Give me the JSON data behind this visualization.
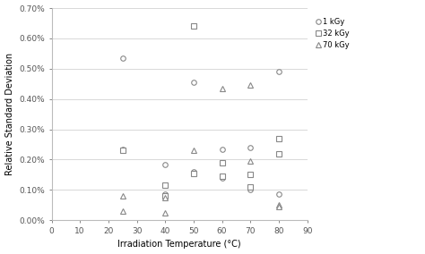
{
  "title": "",
  "xlabel": "Irradiation Temperature (°C)",
  "ylabel": "Relative Standard Deviation",
  "xlim": [
    0,
    90
  ],
  "ylim": [
    0.0,
    0.007
  ],
  "xticks": [
    0,
    10,
    20,
    30,
    40,
    50,
    60,
    70,
    80,
    90
  ],
  "yticks": [
    0.0,
    0.001,
    0.002,
    0.003,
    0.004,
    0.005,
    0.006,
    0.007
  ],
  "ytick_labels": [
    "0.00%",
    "0.10%",
    "0.20%",
    "0.30%",
    "0.40%",
    "0.50%",
    "0.60%",
    "0.70%"
  ],
  "series_1kGy": {
    "label": "1 kGy",
    "marker": "o",
    "x": [
      25,
      25,
      40,
      40,
      50,
      50,
      60,
      60,
      70,
      70,
      80,
      80
    ],
    "y": [
      0.00535,
      0.00235,
      0.00185,
      0.00085,
      0.00455,
      0.0016,
      0.00235,
      0.0014,
      0.0024,
      0.001,
      0.0049,
      0.00085
    ]
  },
  "series_32kGy": {
    "label": "32 kGy",
    "marker": "s",
    "x": [
      25,
      40,
      40,
      50,
      50,
      60,
      60,
      70,
      70,
      80,
      80
    ],
    "y": [
      0.0023,
      0.00115,
      0.0008,
      0.0064,
      0.00155,
      0.0019,
      0.00145,
      0.0015,
      0.0011,
      0.0027,
      0.0022
    ]
  },
  "series_70kGy": {
    "label": "70 kGy",
    "marker": "^",
    "x": [
      25,
      25,
      40,
      40,
      50,
      60,
      70,
      70,
      80,
      80
    ],
    "y": [
      0.0008,
      0.0003,
      0.00075,
      0.00025,
      0.0023,
      0.00435,
      0.00445,
      0.00195,
      0.0005,
      0.00045
    ]
  },
  "marker_size": 4,
  "marker_facecolor": "white",
  "marker_edgecolor": "#888888",
  "grid_color": "#d8d8d8",
  "legend_labels": [
    "1 kGy",
    "32 kGy",
    "70 kGy"
  ],
  "legend_markers": [
    "o",
    "s",
    "^"
  ],
  "fig_width": 4.74,
  "fig_height": 2.84
}
